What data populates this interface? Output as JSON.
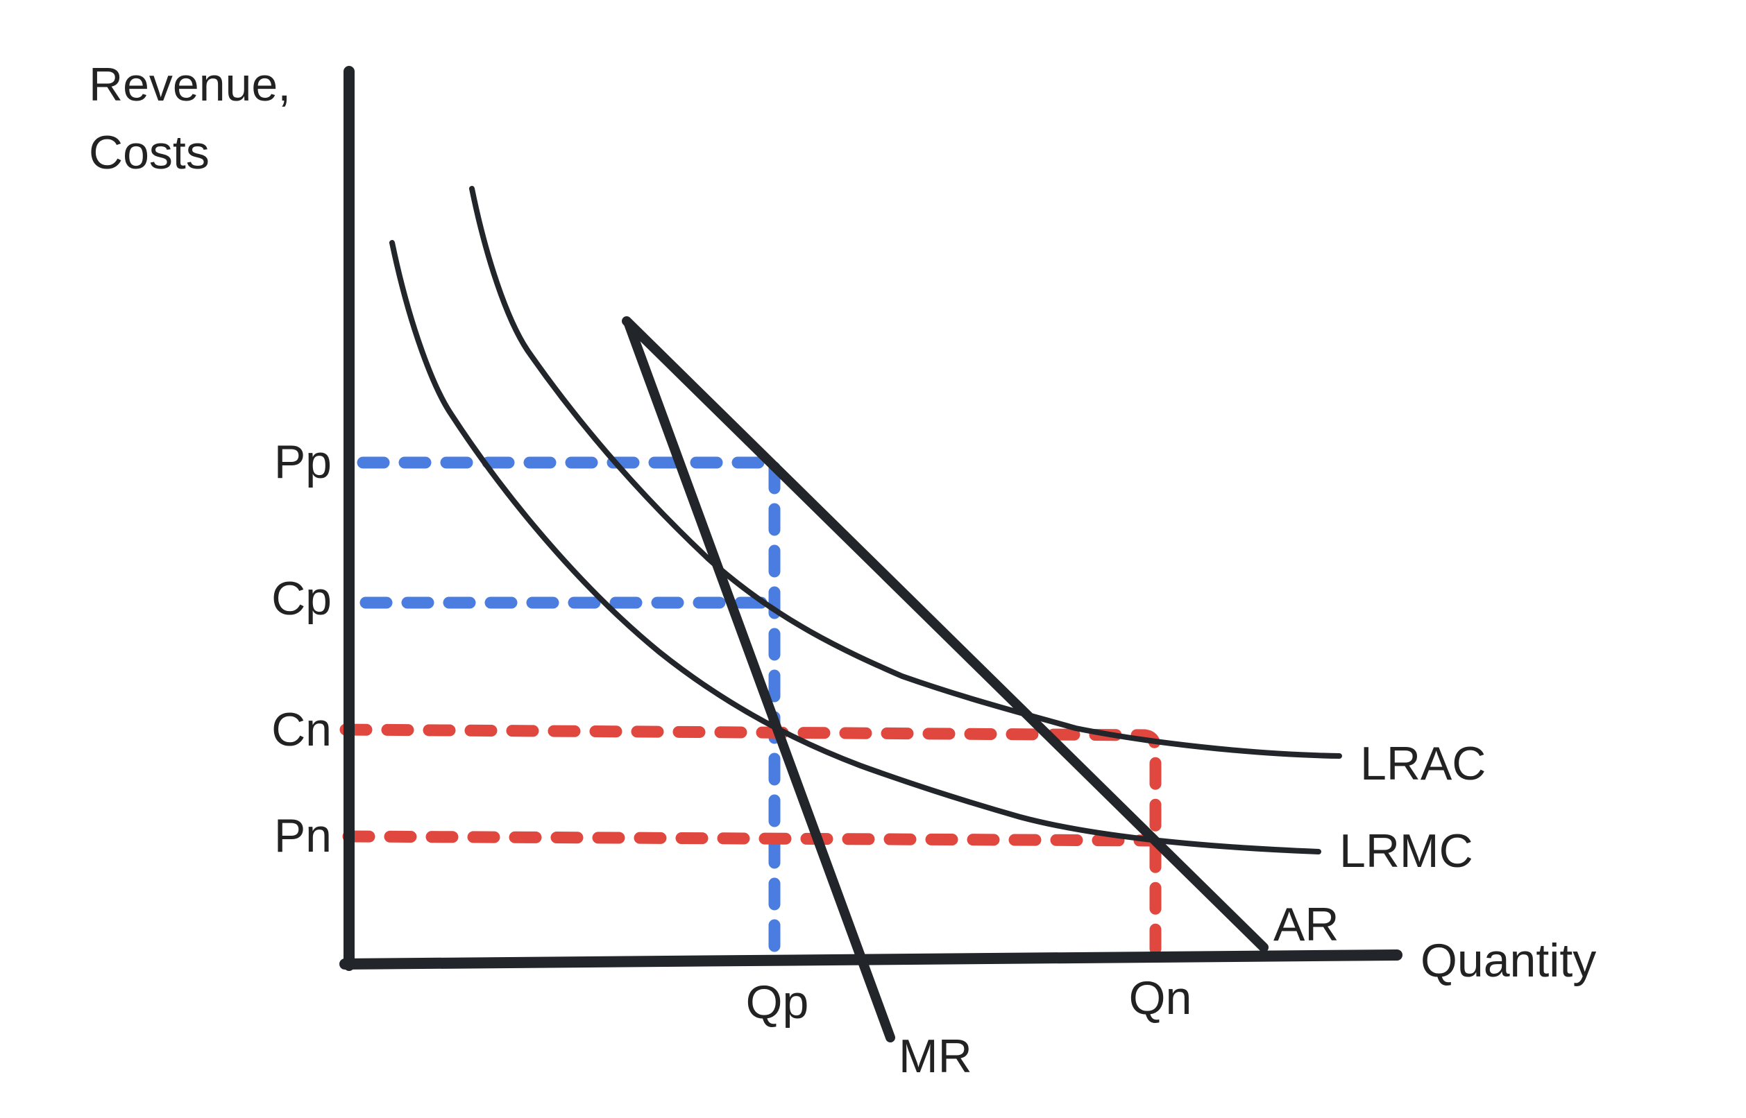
{
  "labels": {
    "y_axis_line1": "Revenue,",
    "y_axis_line2": "Costs",
    "x_axis": "Quantity",
    "pp": "Pp",
    "cp": "Cp",
    "cn": "Cn",
    "pn": "Pn",
    "qp": "Qp",
    "qn": "Qn",
    "lrac": "LRAC",
    "lrmc": "LRMC",
    "ar": "AR",
    "mr": "MR"
  },
  "colors": {
    "profit_max_lines": "#4a7ddf",
    "normal_profit_lines": "#e0473f",
    "curves": "#222529"
  }
}
